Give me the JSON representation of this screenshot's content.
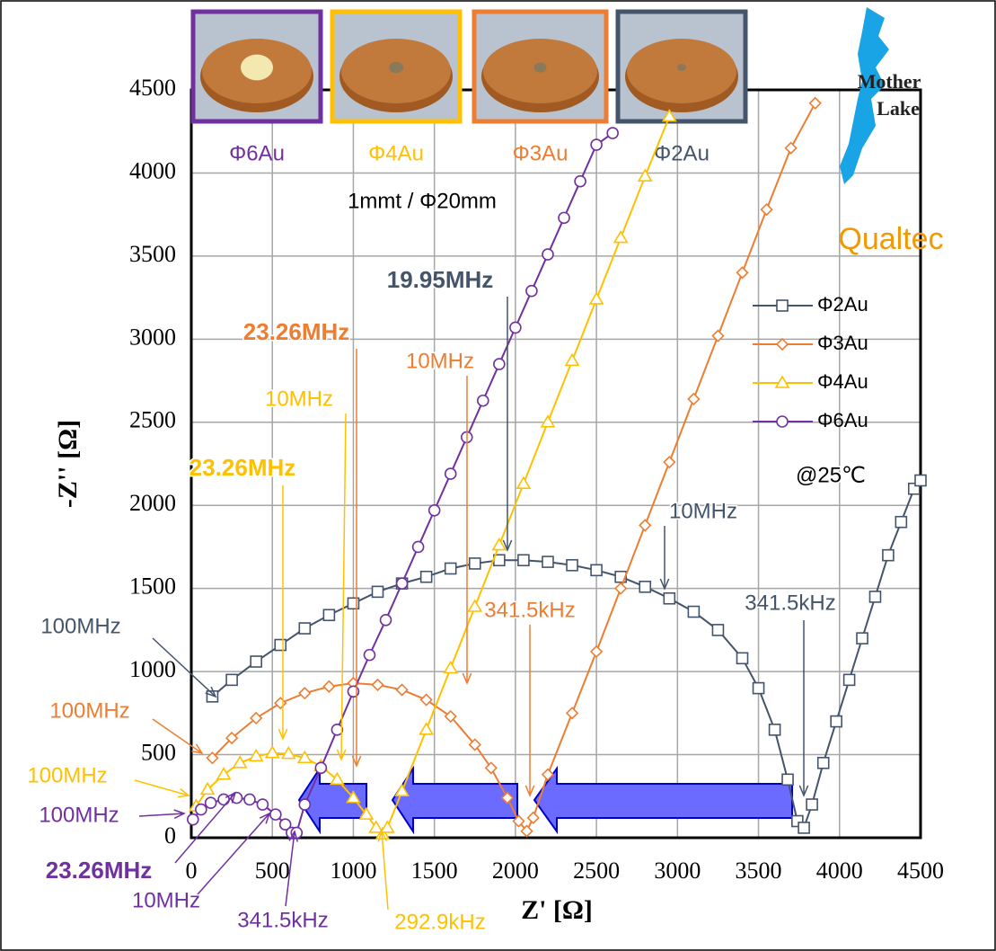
{
  "chart_data": {
    "type": "scatter",
    "xlabel": "Z' [Ω]",
    "ylabel": "-Z'' [Ω]",
    "xlim": [
      0,
      4500
    ],
    "ylim": [
      0,
      4500
    ],
    "xticks": [
      0,
      500,
      1000,
      1500,
      2000,
      2500,
      3000,
      3500,
      4000,
      4500
    ],
    "yticks": [
      0,
      500,
      1000,
      1500,
      2000,
      2500,
      3000,
      3500,
      4000,
      4500
    ],
    "grid": true,
    "legend": "right",
    "series": [
      {
        "name": "Φ2Au",
        "color": "#44546a",
        "marker": "square",
        "x": [
          130,
          250,
          400,
          550,
          700,
          850,
          1000,
          1150,
          1300,
          1450,
          1600,
          1750,
          1900,
          2050,
          2200,
          2350,
          2500,
          2650,
          2800,
          2950,
          3100,
          3250,
          3400,
          3500,
          3600,
          3680,
          3740,
          3780,
          3830,
          3900,
          3980,
          4060,
          4140,
          4220,
          4300,
          4380,
          4460,
          4500
        ],
        "values": [
          850,
          950,
          1060,
          1160,
          1260,
          1340,
          1410,
          1480,
          1530,
          1570,
          1620,
          1650,
          1670,
          1670,
          1660,
          1640,
          1610,
          1570,
          1510,
          1440,
          1360,
          1250,
          1080,
          900,
          650,
          350,
          100,
          60,
          200,
          450,
          700,
          950,
          1200,
          1450,
          1700,
          1900,
          2100,
          2150
        ]
      },
      {
        "name": "Φ3Au",
        "color": "#ed7d31",
        "marker": "diamond",
        "x": [
          130,
          250,
          400,
          550,
          700,
          850,
          1000,
          1150,
          1300,
          1450,
          1600,
          1750,
          1850,
          1950,
          2020,
          2070,
          2110,
          2200,
          2350,
          2500,
          2650,
          2800,
          2950,
          3100,
          3250,
          3400,
          3550,
          3700,
          3850
        ],
        "values": [
          480,
          600,
          720,
          810,
          870,
          910,
          930,
          920,
          890,
          830,
          730,
          560,
          420,
          240,
          100,
          40,
          120,
          380,
          750,
          1120,
          1500,
          1880,
          2260,
          2640,
          3020,
          3400,
          3780,
          4150,
          4420
        ]
      },
      {
        "name": "Φ4Au",
        "color": "#ffc000",
        "marker": "triangle",
        "x": [
          30,
          100,
          200,
          300,
          400,
          500,
          600,
          700,
          800,
          900,
          1000,
          1080,
          1140,
          1180,
          1210,
          1300,
          1450,
          1600,
          1750,
          1900,
          2050,
          2200,
          2350,
          2500,
          2650,
          2800,
          2950
        ],
        "values": [
          190,
          290,
          380,
          450,
          490,
          510,
          505,
          480,
          430,
          350,
          240,
          140,
          60,
          20,
          60,
          280,
          650,
          1020,
          1390,
          1760,
          2130,
          2500,
          2870,
          3240,
          3610,
          3980,
          4340
        ]
      },
      {
        "name": "Φ6Au",
        "color": "#7030a0",
        "marker": "circle",
        "x": [
          10,
          60,
          120,
          200,
          280,
          360,
          440,
          520,
          580,
          620,
          650,
          700,
          800,
          900,
          1000,
          1100,
          1200,
          1300,
          1400,
          1500,
          1600,
          1700,
          1800,
          1900,
          2000,
          2100,
          2200,
          2300,
          2400,
          2500,
          2600
        ],
        "values": [
          110,
          170,
          210,
          230,
          240,
          230,
          200,
          140,
          80,
          30,
          30,
          200,
          420,
          650,
          880,
          1100,
          1310,
          1530,
          1750,
          1970,
          2190,
          2410,
          2630,
          2850,
          3070,
          3290,
          3510,
          3730,
          3950,
          4170,
          4240
        ]
      }
    ],
    "annotations": [
      {
        "text": "19.95MHz",
        "color": "#44546a",
        "bold": true
      },
      {
        "text": "23.26MHz",
        "color": "#ed7d31",
        "bold": true
      },
      {
        "text": "10MHz",
        "color": "#ed7d31",
        "bold": false
      },
      {
        "text": "10MHz",
        "color": "#ffc000",
        "bold": false
      },
      {
        "text": "23.26MHz",
        "color": "#ffc000",
        "bold": true
      },
      {
        "text": "10MHz",
        "color": "#44546a",
        "bold": false
      },
      {
        "text": "341.5kHz",
        "color": "#ed7d31",
        "bold": false
      },
      {
        "text": "341.5kHz",
        "color": "#44546a",
        "bold": false
      },
      {
        "text": "100MHz",
        "color": "#44546a",
        "bold": false
      },
      {
        "text": "100MHz",
        "color": "#ed7d31",
        "bold": false
      },
      {
        "text": "100MHz",
        "color": "#ffc000",
        "bold": false
      },
      {
        "text": "100MHz",
        "color": "#7030a0",
        "bold": false
      },
      {
        "text": "23.26MHz",
        "color": "#7030a0",
        "bold": true
      },
      {
        "text": "10MHz",
        "color": "#7030a0",
        "bold": false
      },
      {
        "text": "341.5kHz",
        "color": "#7030a0",
        "bold": false
      },
      {
        "text": "292.9kHz",
        "color": "#ffc000",
        "bold": false
      },
      {
        "text": "@25℃",
        "color": "#000000",
        "bold": false
      }
    ],
    "photos": [
      {
        "label": "Φ6Au",
        "color": "#7030a0"
      },
      {
        "label": "Φ4Au",
        "color": "#ffc000"
      },
      {
        "label": "Φ3Au",
        "color": "#ed7d31"
      },
      {
        "label": "Φ2Au",
        "color": "#44546a"
      }
    ],
    "sample_note": "1mmt / Φ20mm",
    "logos": {
      "mother_lake": [
        "Mother",
        "Lake"
      ],
      "qualtec": "Qualtec"
    }
  }
}
